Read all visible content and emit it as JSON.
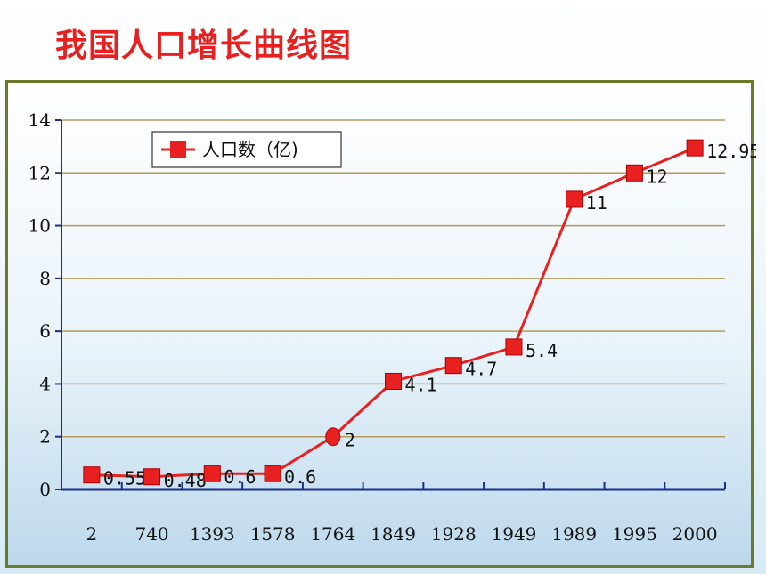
{
  "title": "我国人口增长曲线图",
  "chart_data": {
    "type": "line",
    "title": "我国人口增长曲线图",
    "categories": [
      "2",
      "740",
      "1393",
      "1578",
      "1764",
      "1849",
      "1928",
      "1949",
      "1989",
      "1995",
      "2000"
    ],
    "series": [
      {
        "name": "人口数（亿)",
        "values": [
          0.55,
          0.48,
          0.6,
          0.6,
          2,
          4.1,
          4.7,
          5.4,
          11,
          12,
          12.95
        ],
        "labels": [
          "0.55",
          "0.48",
          "0.6",
          "0.6",
          "2",
          "4.1",
          "4.7",
          "5.4",
          "11",
          "12",
          "12.95"
        ],
        "color": "#e8201f",
        "marker": "square",
        "special_markers": {
          "4": "circle"
        }
      }
    ],
    "yticks": [
      0,
      2,
      4,
      6,
      8,
      10,
      12,
      14
    ],
    "ylim": [
      0,
      14
    ],
    "grid": "horizontal",
    "gridline_color": "#b59a5a",
    "legend": {
      "position": "top-left",
      "entries": [
        "人口数（亿)"
      ]
    },
    "xlabel": "",
    "ylabel": ""
  }
}
